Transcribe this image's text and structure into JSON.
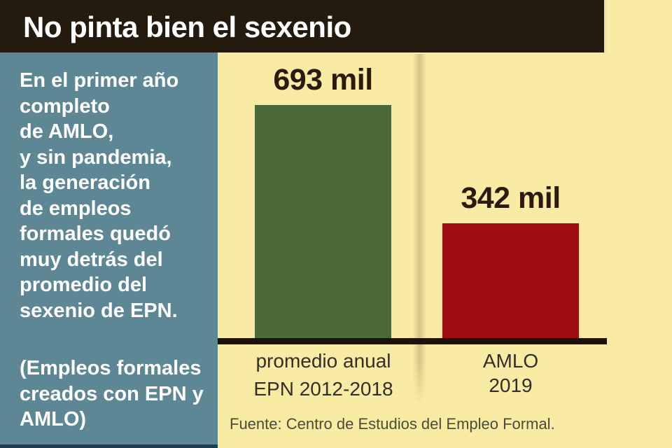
{
  "header": {
    "title": "No pinta bien el sexenio"
  },
  "sidebar": {
    "description": "En el primer año\ncompleto\nde AMLO,\ny sin pandemia,\nla generación\nde empleos\nformales quedó\nmuy detrás del\npromedio del\nsexenio de EPN.",
    "note": "(Empleos formales\ncreados con EPN y\nAMLO)"
  },
  "chart_data": {
    "type": "bar",
    "title": "No pinta bien el sexenio",
    "categories": [
      "promedio anual EPN 2012-2018",
      "AMLO 2019"
    ],
    "values": [
      693,
      342
    ],
    "unit": "mil",
    "xlabel": "",
    "ylabel": "",
    "grid": false,
    "legend": false,
    "bars": [
      {
        "value": 693,
        "value_label": "693 mil",
        "axis_label": "promedio anual\nEPN 2012-2018",
        "color": "#4c6939"
      },
      {
        "value": 342,
        "value_label": "342 mil",
        "axis_label": "AMLO\n2019",
        "color": "#9d0d10"
      }
    ],
    "source": "Fuente: Centro de Estudios del Empleo Formal."
  },
  "colors": {
    "header_bg": "#251a0e",
    "header_text": "#ffffff",
    "sidebar_bg": "#5e8796",
    "sidebar_text": "#ffffff",
    "sidebar_bottom_strip": "#1e3c50",
    "canvas_bg": "#f8eba3",
    "bar_green": "#4c6939",
    "bar_red": "#9d0d10",
    "axis_line": "#1c120b",
    "value_label_text": "#2b1a0d",
    "axis_label_text": "#332e26",
    "source_text": "#4e4a36"
  }
}
